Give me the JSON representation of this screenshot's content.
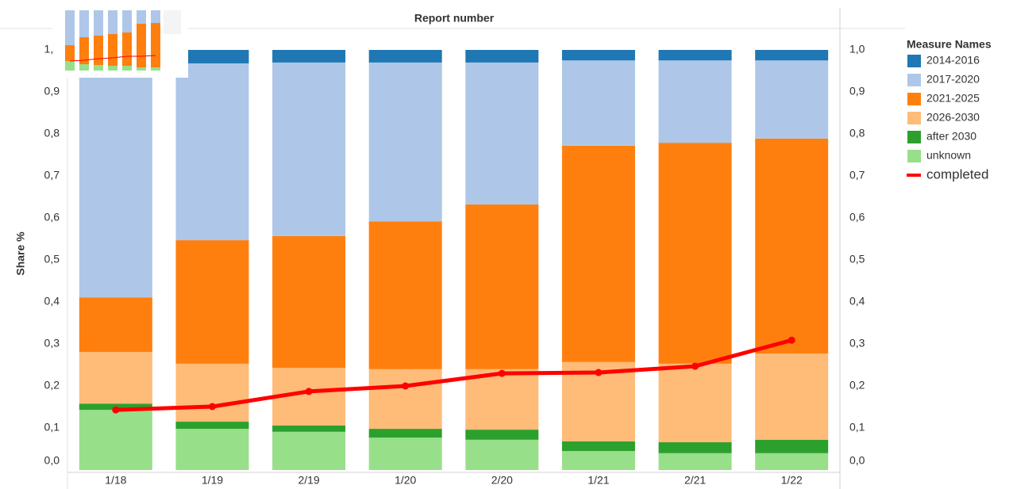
{
  "chart_data": {
    "type": "bar",
    "stacked": true,
    "title": "Report number",
    "y_label": "Share %",
    "legend_title": "Measure Names",
    "legend": "right",
    "categories": [
      "1/18",
      "1/19",
      "2/19",
      "1/20",
      "2/20",
      "1/21",
      "2/21",
      "1/22"
    ],
    "ylim": [
      0,
      1
    ],
    "yticks": [
      {
        "value": 0,
        "label": "0,0"
      },
      {
        "value": 0.1,
        "label": "0,1"
      },
      {
        "value": 0.2,
        "label": "0,2"
      },
      {
        "value": 0.3,
        "label": "0,3"
      },
      {
        "value": 0.4,
        "label": "0,4"
      },
      {
        "value": 0.5,
        "label": "0,5"
      },
      {
        "value": 0.6,
        "label": "0,6"
      },
      {
        "value": 0.7,
        "label": "0,7"
      },
      {
        "value": 0.8,
        "label": "0,8"
      },
      {
        "value": 0.9,
        "label": "0,9"
      },
      {
        "value": 1,
        "label": "1,0"
      }
    ],
    "y2lim": [
      0,
      1
    ],
    "y2ticks": [
      {
        "value": 0,
        "label": "0,0"
      },
      {
        "value": 0.1,
        "label": "0,1"
      },
      {
        "value": 0.2,
        "label": "0,2"
      },
      {
        "value": 0.3,
        "label": "0,3"
      },
      {
        "value": 0.4,
        "label": "0,4"
      },
      {
        "value": 0.5,
        "label": "0,5"
      },
      {
        "value": 0.6,
        "label": "0,6"
      },
      {
        "value": 0.7,
        "label": "0,7"
      },
      {
        "value": 0.8,
        "label": "0,8"
      },
      {
        "value": 0.9,
        "label": "0,9"
      },
      {
        "value": 1,
        "label": "1,0"
      }
    ],
    "series": [
      {
        "name": "2014-2016",
        "color": "#1f77b4",
        "values": [
          0.032,
          0.032,
          0.03,
          0.03,
          0.03,
          0.025,
          0.025,
          0.025
        ]
      },
      {
        "name": "2017-2020",
        "color": "#aec7e8",
        "values": [
          0.557,
          0.421,
          0.413,
          0.378,
          0.338,
          0.203,
          0.196,
          0.186
        ]
      },
      {
        "name": "2021-2025",
        "color": "#ff7f0e",
        "values": [
          0.13,
          0.294,
          0.314,
          0.352,
          0.392,
          0.515,
          0.526,
          0.512
        ]
      },
      {
        "name": "2026-2030",
        "color": "#ffbb78",
        "values": [
          0.123,
          0.138,
          0.137,
          0.142,
          0.144,
          0.189,
          0.187,
          0.205
        ]
      },
      {
        "name": "after 2030",
        "color": "#2ca02c",
        "values": [
          0.015,
          0.017,
          0.015,
          0.021,
          0.024,
          0.023,
          0.026,
          0.032
        ]
      },
      {
        "name": "unknown",
        "color": "#98df8a",
        "values": [
          0.143,
          0.098,
          0.091,
          0.077,
          0.072,
          0.045,
          0.04,
          0.04
        ]
      },
      {
        "name": "completed",
        "type": "line",
        "axis": "y2",
        "color": "#ff0000",
        "values": [
          0.143,
          0.151,
          0.187,
          0.2,
          0.23,
          0.232,
          0.247,
          0.309
        ]
      }
    ]
  }
}
